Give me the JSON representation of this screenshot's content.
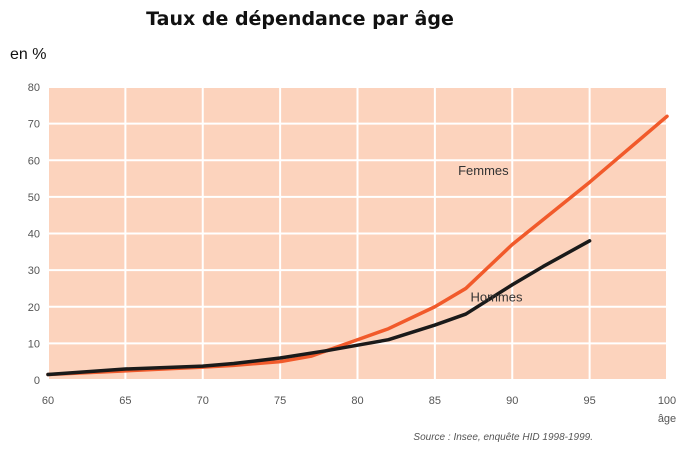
{
  "title": "Taux de dépendance par âge",
  "unit_label": "en %",
  "source": "Source : Insee, enquête HID 1998-1999.",
  "colors": {
    "plot_background": "#fcd3bd",
    "grid": "#ffffff",
    "femmes": "#f15a2b",
    "hommes": "#1a1a1a"
  },
  "chart_data": {
    "type": "line",
    "title": "Taux de dépendance par âge",
    "xlabel": "âge",
    "ylabel": "en %",
    "xlim": [
      60,
      100
    ],
    "ylim": [
      0,
      80
    ],
    "grid": true,
    "x_ticks": [
      60,
      65,
      70,
      75,
      80,
      85,
      90,
      95,
      100
    ],
    "y_ticks": [
      0,
      10,
      20,
      30,
      40,
      50,
      60,
      70,
      80
    ],
    "series": [
      {
        "name": "Femmes",
        "x": [
          60,
          65,
          70,
          72,
          75,
          77,
          80,
          82,
          85,
          87,
          90,
          95,
          100
        ],
        "y": [
          1.5,
          2.5,
          3.5,
          4,
          5,
          6.5,
          11,
          14,
          20,
          25,
          37,
          54,
          72
        ]
      },
      {
        "name": "Hommes",
        "x": [
          60,
          65,
          70,
          72,
          75,
          78,
          80,
          82,
          85,
          87,
          90,
          92,
          95
        ],
        "y": [
          1.5,
          3,
          3.8,
          4.5,
          6,
          8,
          9.5,
          11,
          15,
          18,
          26,
          31,
          38
        ]
      }
    ]
  }
}
